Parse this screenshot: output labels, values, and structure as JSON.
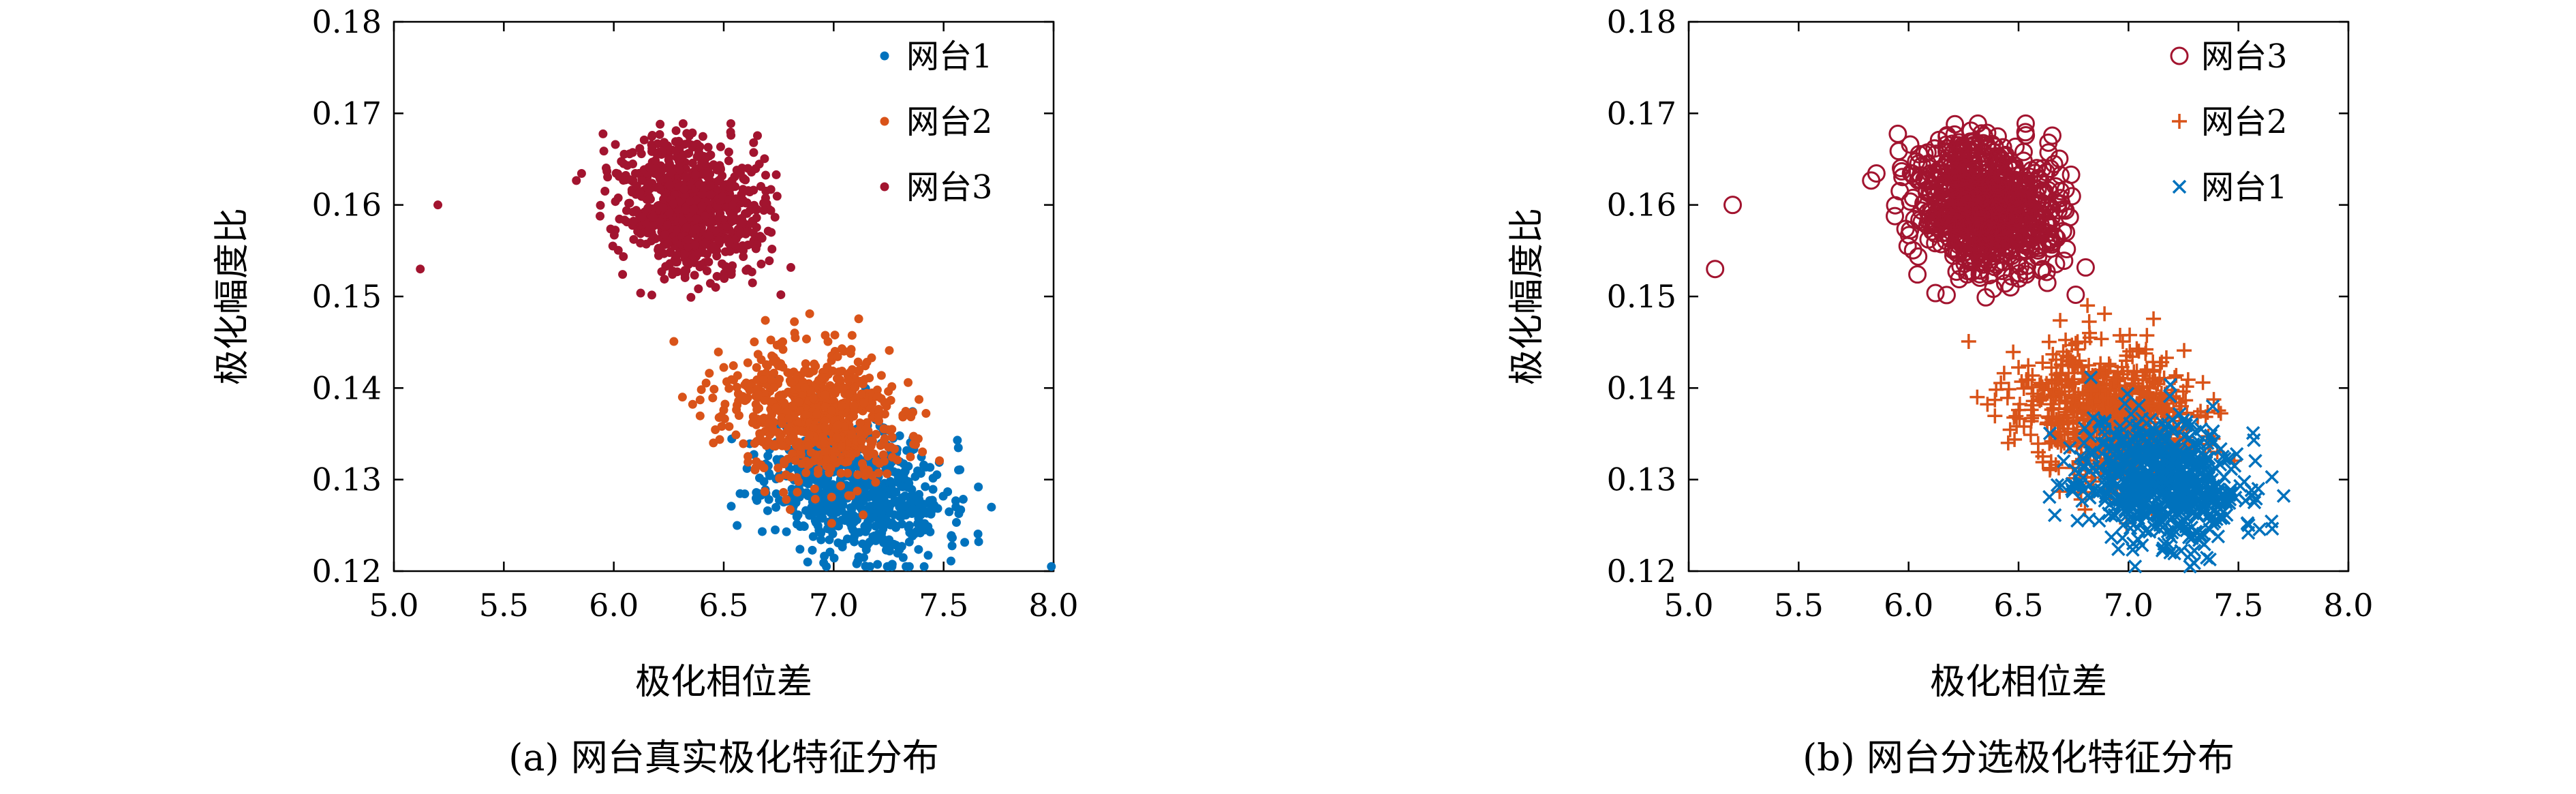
{
  "chart_data": [
    {
      "panel": "a",
      "type": "scatter",
      "caption": "(a) 网台真实极化特征分布",
      "xlabel": "极化相位差",
      "ylabel": "极化幅度比",
      "xlim": [
        5.0,
        8.0
      ],
      "ylim": [
        0.12,
        0.18
      ],
      "xticks": [
        "5.0",
        "5.5",
        "6.0",
        "6.5",
        "7.0",
        "7.5",
        "8.0"
      ],
      "yticks": [
        "0.12",
        "0.13",
        "0.14",
        "0.15",
        "0.16",
        "0.17",
        "0.18"
      ],
      "grid": false,
      "legend_position": "top-right",
      "series": [
        {
          "name": "网台1",
          "color": "#0072BD",
          "marker": "dot",
          "center": [
            7.1,
            0.129
          ],
          "spread": [
            0.2,
            0.0036
          ],
          "count": 700,
          "seed": 11
        },
        {
          "name": "网台2",
          "color": "#D95319",
          "marker": "dot",
          "center": [
            6.9,
            0.137
          ],
          "spread": [
            0.2,
            0.0036
          ],
          "count": 700,
          "seed": 23
        },
        {
          "name": "网台3",
          "color": "#A2142F",
          "marker": "dot",
          "center": [
            6.35,
            0.16
          ],
          "spread": [
            0.16,
            0.0036
          ],
          "count": 800,
          "seed": 37,
          "extra_points": [
            [
              5.12,
              0.153
            ],
            [
              5.2,
              0.16
            ]
          ]
        }
      ]
    },
    {
      "panel": "b",
      "type": "scatter",
      "caption": "(b) 网台分选极化特征分布",
      "xlabel": "极化相位差",
      "ylabel": "极化幅度比",
      "xlim": [
        5.0,
        8.0
      ],
      "ylim": [
        0.12,
        0.18
      ],
      "xticks": [
        "5.0",
        "5.5",
        "6.0",
        "6.5",
        "7.0",
        "7.5",
        "8.0"
      ],
      "yticks": [
        "0.12",
        "0.13",
        "0.14",
        "0.15",
        "0.16",
        "0.17",
        "0.18"
      ],
      "grid": false,
      "legend_position": "top-right",
      "series": [
        {
          "name": "网台3",
          "color": "#A2142F",
          "marker": "circle",
          "center": [
            6.35,
            0.16
          ],
          "spread": [
            0.16,
            0.0036
          ],
          "count": 800,
          "seed": 37,
          "extra_points": [
            [
              5.12,
              0.153
            ],
            [
              5.2,
              0.16
            ]
          ]
        },
        {
          "name": "网台2",
          "color": "#D95319",
          "marker": "plus",
          "center": [
            6.9,
            0.137
          ],
          "spread": [
            0.2,
            0.0036
          ],
          "count": 750,
          "seed": 23
        },
        {
          "name": "网台1",
          "color": "#0072BD",
          "marker": "cross",
          "center": [
            7.15,
            0.13
          ],
          "spread": [
            0.18,
            0.0034
          ],
          "count": 650,
          "seed": 11
        }
      ]
    }
  ]
}
